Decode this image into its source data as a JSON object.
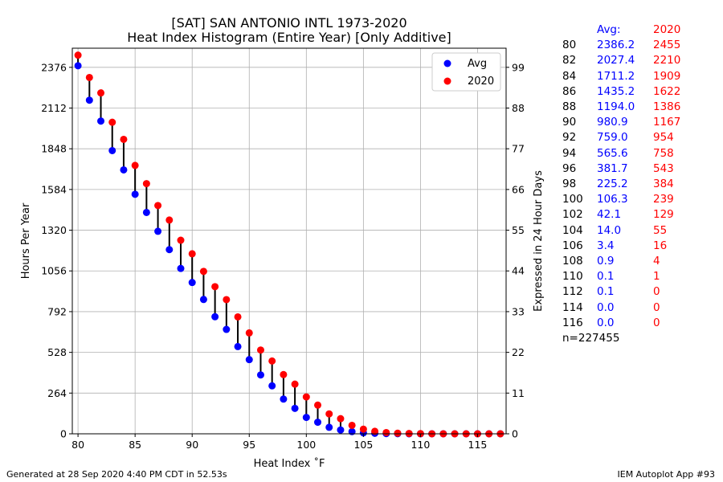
{
  "chart_data": {
    "type": "scatter",
    "title": "[SAT] SAN ANTONIO INTL 1973-2020",
    "subtitle": "Heat Index Histogram (Entire Year) [Only Additive]",
    "xlabel": "Heat Index $^\\circ$F",
    "xlabel_display": "Heat Index ˚F",
    "ylabel": "Hours Per Year",
    "ylabel_right": "Expressed in 24 Hour Days",
    "xlim": [
      79.5,
      117.5
    ],
    "ylim": [
      0,
      2500
    ],
    "x_ticks": [
      "80",
      "85",
      "90",
      "95",
      "100",
      "105",
      "110",
      "115"
    ],
    "y_ticks": [
      "0",
      "264",
      "528",
      "792",
      "1056",
      "1320",
      "1584",
      "1848",
      "2112",
      "2376"
    ],
    "y_right_ticks": [
      "0",
      "11",
      "22",
      "33",
      "44",
      "55",
      "66",
      "77",
      "88",
      "99"
    ],
    "grid": true,
    "legend_position": "top-right",
    "x": [
      80,
      81,
      82,
      83,
      84,
      85,
      86,
      87,
      88,
      89,
      90,
      91,
      92,
      93,
      94,
      95,
      96,
      97,
      98,
      99,
      100,
      101,
      102,
      103,
      104,
      105,
      106,
      107,
      108,
      109,
      110,
      111,
      112,
      113,
      114,
      115,
      116,
      117
    ],
    "series": [
      {
        "name": "Avg",
        "color": "#0000ff",
        "values": [
          2386.2,
          2163,
          2027.4,
          1836,
          1711.2,
          1553,
          1435.2,
          1313,
          1194.0,
          1072,
          980.9,
          871,
          759.0,
          677,
          565.6,
          481,
          381.7,
          311,
          225.2,
          165,
          106.3,
          75,
          42.1,
          25,
          14.0,
          6,
          3.4,
          1.5,
          0.9,
          0.3,
          0.1,
          0.1,
          0.1,
          0,
          0.0,
          0,
          0.0,
          0
        ]
      },
      {
        "name": "2020",
        "color": "#ff0000",
        "values": [
          2455,
          2310,
          2210,
          2020,
          1909,
          1740,
          1622,
          1480,
          1386,
          1255,
          1167,
          1053,
          954,
          870,
          758,
          654,
          543,
          472,
          384,
          322,
          239,
          186,
          129,
          98,
          55,
          30,
          16,
          8,
          4,
          2,
          1,
          0,
          0,
          0,
          0,
          0,
          0,
          0
        ]
      }
    ]
  },
  "table": {
    "header": {
      "avg": "Avg:",
      "year": "2020"
    },
    "rows": [
      {
        "t": "80",
        "avg": "2386.2",
        "year": "2455"
      },
      {
        "t": "82",
        "avg": "2027.4",
        "year": "2210"
      },
      {
        "t": "84",
        "avg": "1711.2",
        "year": "1909"
      },
      {
        "t": "86",
        "avg": "1435.2",
        "year": "1622"
      },
      {
        "t": "88",
        "avg": "1194.0",
        "year": "1386"
      },
      {
        "t": "90",
        "avg": "980.9",
        "year": "1167"
      },
      {
        "t": "92",
        "avg": "759.0",
        "year": "954"
      },
      {
        "t": "94",
        "avg": "565.6",
        "year": "758"
      },
      {
        "t": "96",
        "avg": "381.7",
        "year": "543"
      },
      {
        "t": "98",
        "avg": "225.2",
        "year": "384"
      },
      {
        "t": "100",
        "avg": "106.3",
        "year": "239"
      },
      {
        "t": "102",
        "avg": "42.1",
        "year": "129"
      },
      {
        "t": "104",
        "avg": "14.0",
        "year": "55"
      },
      {
        "t": "106",
        "avg": "3.4",
        "year": "16"
      },
      {
        "t": "108",
        "avg": "0.9",
        "year": "4"
      },
      {
        "t": "110",
        "avg": "0.1",
        "year": "1"
      },
      {
        "t": "112",
        "avg": "0.1",
        "year": "0"
      },
      {
        "t": "114",
        "avg": "0.0",
        "year": "0"
      },
      {
        "t": "116",
        "avg": "0.0",
        "year": "0"
      }
    ],
    "n": "n=227455"
  },
  "footer": {
    "generated": "Generated at 28 Sep 2020 4:40 PM CDT in 52.53s",
    "app": "IEM Autoplot App #93"
  }
}
